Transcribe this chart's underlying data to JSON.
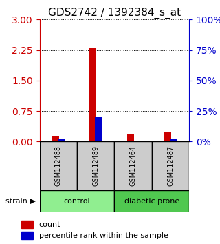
{
  "title": "GDS2742 / 1392384_s_at",
  "samples": [
    "GSM112488",
    "GSM112489",
    "GSM112464",
    "GSM112487"
  ],
  "red_values": [
    0.12,
    2.3,
    0.18,
    0.22
  ],
  "blue_values_pct": [
    2,
    20,
    1,
    2
  ],
  "left_yticks": [
    0,
    0.75,
    1.5,
    2.25,
    3
  ],
  "right_yticks": [
    0,
    25,
    50,
    75,
    100
  ],
  "groups": [
    {
      "label": "control",
      "color": "#90ee90"
    },
    {
      "label": "diabetic prone",
      "color": "#50c850"
    }
  ],
  "bar_width": 0.18,
  "red_color": "#cc0000",
  "blue_color": "#0000cc",
  "left_axis_color": "#cc0000",
  "right_axis_color": "#0000cc",
  "sample_box_color": "#cccccc",
  "legend_items": [
    "count",
    "percentile rank within the sample"
  ],
  "figsize": [
    3.2,
    3.54
  ],
  "dpi": 100
}
